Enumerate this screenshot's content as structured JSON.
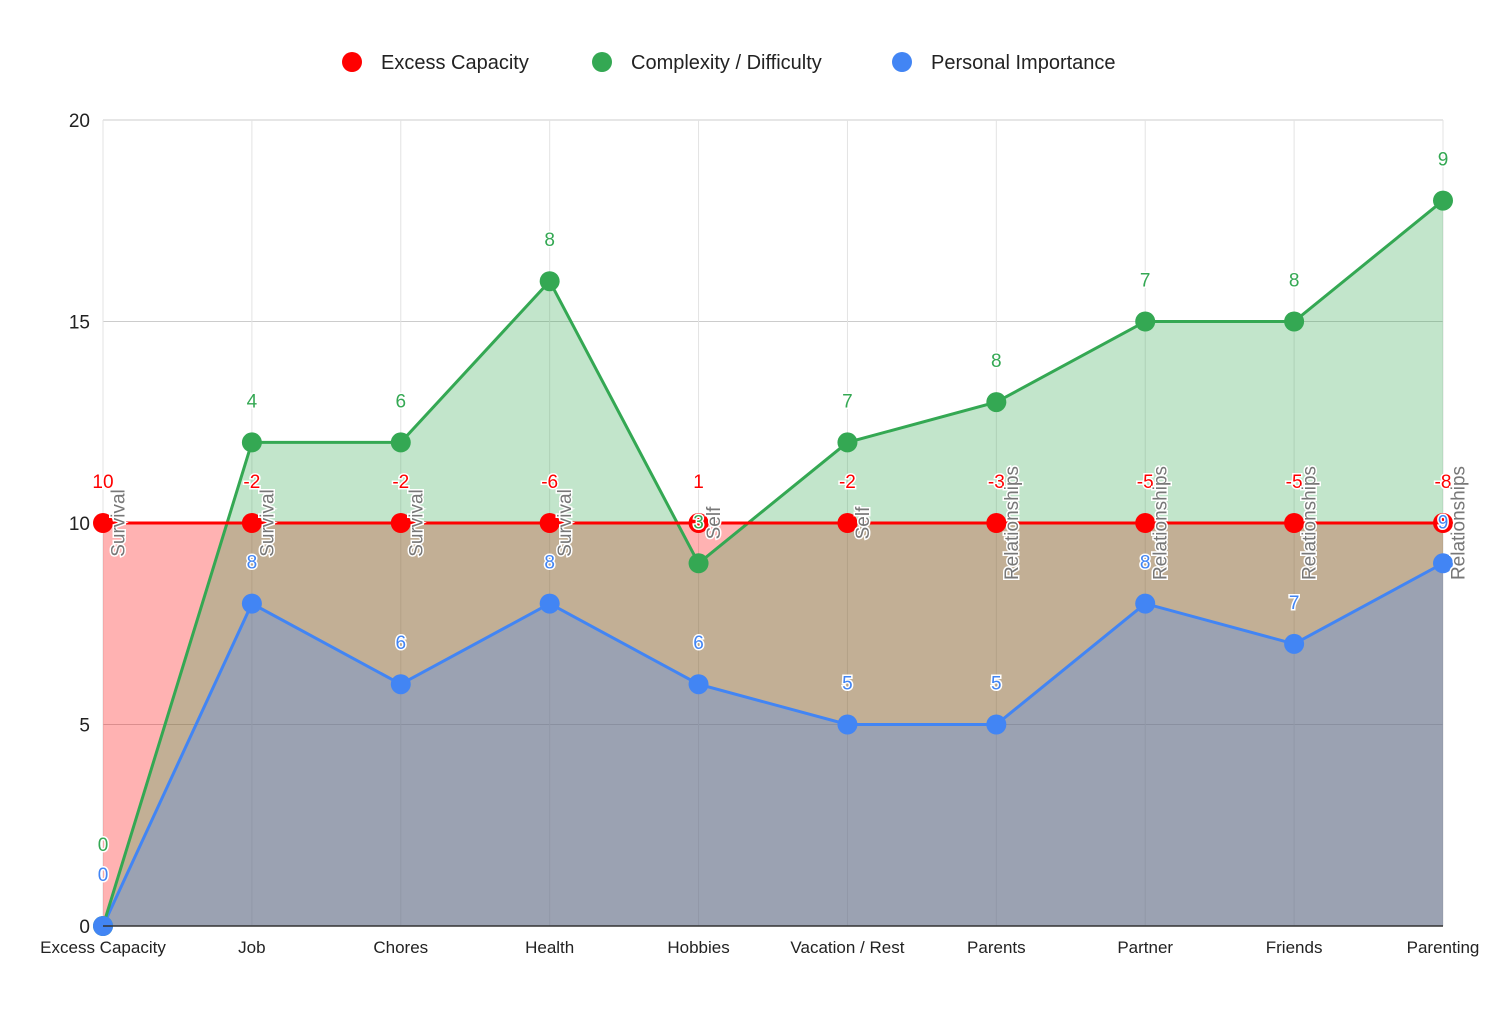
{
  "chart_data": {
    "type": "area",
    "stacked": true,
    "categories": [
      "Excess Capacity",
      "Job",
      "Chores",
      "Health",
      "Hobbies",
      "Vacation / Rest",
      "Parents",
      "Partner",
      "Friends",
      "Parenting"
    ],
    "ylim": [
      0,
      20
    ],
    "yticks": [
      0,
      5,
      10,
      15,
      20
    ],
    "grid": true,
    "legend_position": "top",
    "series": [
      {
        "name": "Excess Capacity",
        "color": "#ff0000",
        "plotted": [
          10,
          10,
          10,
          10,
          10,
          10,
          10,
          10,
          10,
          10
        ],
        "labels": [
          10,
          -2,
          -2,
          -6,
          1,
          -2,
          -3,
          -5,
          -5,
          -8
        ],
        "stacked": false
      },
      {
        "name": "Complexity / Difficulty",
        "color": "#34a853",
        "values": [
          0,
          4,
          6,
          8,
          3,
          7,
          8,
          7,
          8,
          9
        ]
      },
      {
        "name": "Personal Importance",
        "color": "#4285f4",
        "values": [
          0,
          8,
          6,
          8,
          6,
          5,
          5,
          8,
          7,
          9
        ]
      }
    ],
    "annotations": [
      "Survival",
      "Survival",
      "Survival",
      "Survival",
      "Self",
      "Self",
      "Relationships",
      "Relationships",
      "Relationships",
      "Relationships"
    ]
  }
}
